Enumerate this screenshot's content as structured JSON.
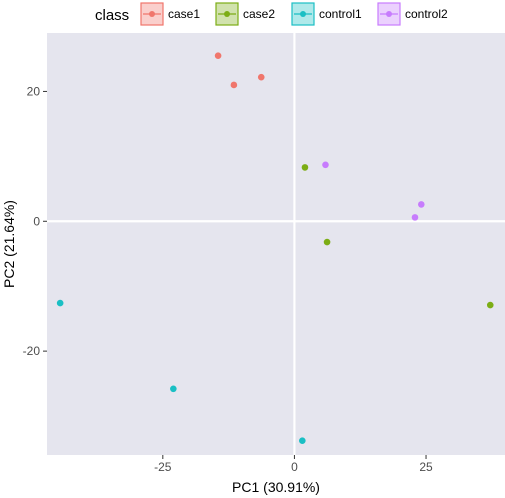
{
  "chart_data": {
    "type": "scatter",
    "xlabel": "PC1 (30.91%)",
    "ylabel": "PC2 (21.64%)",
    "xlim": [
      -47,
      40
    ],
    "ylim": [
      -36,
      29
    ],
    "x_ticks": [
      -25,
      0,
      25
    ],
    "y_ticks": [
      -20,
      0,
      20
    ],
    "x_tick_labels": [
      "-25",
      "0",
      "25"
    ],
    "y_tick_labels": [
      "-20",
      "0",
      "20"
    ],
    "grid": true,
    "zero_lines": true,
    "legend": {
      "title": "class",
      "position": "top"
    },
    "colors": {
      "panel_background": "#e5e5ee",
      "zero_line": "#ffffff"
    },
    "series": [
      {
        "name": "case1",
        "color": "#f0766c",
        "points": [
          [
            -14.5,
            25.5
          ],
          [
            -11.5,
            21.0
          ],
          [
            -6.3,
            22.2
          ]
        ]
      },
      {
        "name": "case2",
        "color": "#7cad15",
        "points": [
          [
            2.0,
            8.3
          ],
          [
            6.2,
            -3.2
          ],
          [
            37.2,
            -12.9
          ]
        ]
      },
      {
        "name": "control1",
        "color": "#1abfc4",
        "points": [
          [
            -44.5,
            -12.6
          ],
          [
            -23.0,
            -25.8
          ],
          [
            1.5,
            -33.8
          ]
        ]
      },
      {
        "name": "control2",
        "color": "#c77cfd",
        "points": [
          [
            5.9,
            8.7
          ],
          [
            24.1,
            2.6
          ],
          [
            22.9,
            0.6
          ]
        ]
      }
    ]
  }
}
